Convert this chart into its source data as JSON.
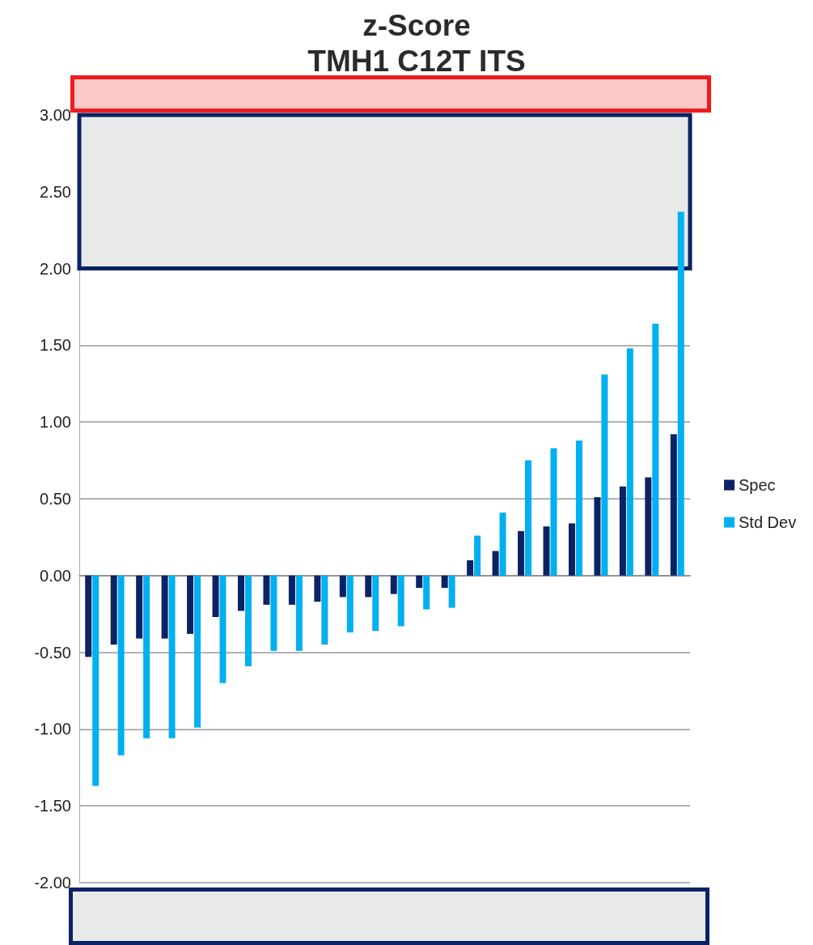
{
  "chart_data": {
    "type": "bar",
    "title": "z-Score\nTMH1 C12T ITS",
    "categories": [
      null,
      null,
      null,
      null,
      null,
      null,
      null,
      null,
      null,
      null,
      null,
      null,
      null,
      null,
      null,
      null,
      null,
      null,
      null,
      null,
      null,
      null,
      null,
      null
    ],
    "series": [
      {
        "name": "Spec",
        "color": "#0b2265",
        "values": [
          -0.53,
          -0.45,
          -0.41,
          -0.41,
          -0.38,
          -0.27,
          -0.23,
          -0.19,
          -0.19,
          -0.17,
          -0.14,
          -0.14,
          -0.12,
          -0.08,
          -0.08,
          0.1,
          0.16,
          0.29,
          0.32,
          0.34,
          0.51,
          0.58,
          0.64,
          0.92
        ]
      },
      {
        "name": "Std Dev",
        "color": "#00b0f0",
        "values": [
          -1.37,
          -1.17,
          -1.06,
          -1.06,
          -0.99,
          -0.7,
          -0.59,
          -0.49,
          -0.49,
          -0.45,
          -0.37,
          -0.36,
          -0.33,
          -0.22,
          -0.21,
          0.26,
          0.41,
          0.75,
          0.83,
          0.88,
          1.31,
          1.48,
          1.64,
          2.37
        ]
      }
    ],
    "ylim": [
      -2,
      3
    ],
    "yticks": [
      {
        "value": -2,
        "label": "-2.00"
      },
      {
        "value": -1.5,
        "label": "-1.50"
      },
      {
        "value": -1,
        "label": "-1.00"
      },
      {
        "value": -0.5,
        "label": "-0.50"
      },
      {
        "value": 0,
        "label": "0.00"
      },
      {
        "value": 0.5,
        "label": "0.50"
      },
      {
        "value": 1,
        "label": "1.00"
      },
      {
        "value": 1.5,
        "label": "1.50"
      },
      {
        "value": 2,
        "label": "2.00"
      },
      {
        "value": 2.5,
        "label": "2.50"
      },
      {
        "value": 3,
        "label": "3.00"
      }
    ],
    "bands": [
      {
        "axis": "y",
        "from": 2,
        "to": 3,
        "color": "#e8eaea"
      }
    ],
    "grid": "y",
    "legend": "right",
    "tick_labels": "y"
  }
}
